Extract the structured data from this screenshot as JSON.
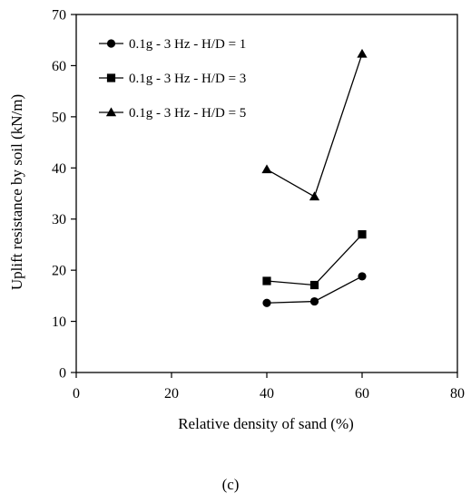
{
  "caption": "(c)",
  "chart_data": {
    "type": "line",
    "title": "",
    "xlabel": "Relative density of sand (%)",
    "ylabel": "Uplift resistance by soil (kN/m)",
    "xlim": [
      0,
      80
    ],
    "ylim": [
      0,
      70
    ],
    "x_ticks": [
      0,
      20,
      40,
      60,
      80
    ],
    "y_ticks": [
      0,
      10,
      20,
      30,
      40,
      50,
      60,
      70
    ],
    "grid": false,
    "legend_position": "top-left",
    "line_color": "#000000",
    "series": [
      {
        "name": "0.1g - 3 Hz - H/D = 1",
        "marker": "circle",
        "x": [
          40,
          50,
          60
        ],
        "y": [
          13.6,
          13.9,
          18.8
        ]
      },
      {
        "name": "0.1g - 3 Hz - H/D = 3",
        "marker": "square",
        "x": [
          40,
          50,
          60
        ],
        "y": [
          17.9,
          17.1,
          27.0
        ]
      },
      {
        "name": "0.1g - 3 Hz - H/D = 5",
        "marker": "triangle",
        "x": [
          40,
          50,
          60
        ],
        "y": [
          39.7,
          34.4,
          62.3
        ]
      }
    ]
  }
}
